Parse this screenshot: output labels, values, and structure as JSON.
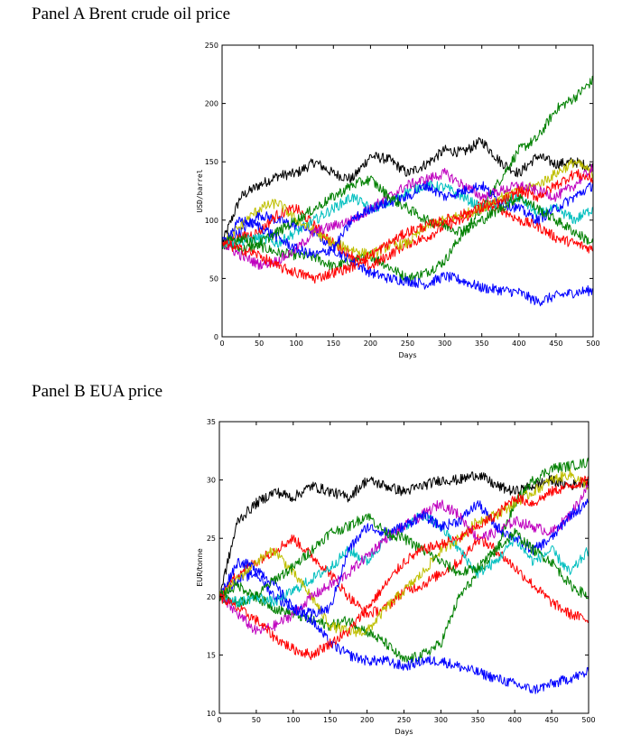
{
  "panels": [
    {
      "title": "Panel A Brent crude oil price"
    },
    {
      "title": "Panel B EUA price"
    }
  ],
  "chart_data": [
    {
      "type": "line",
      "title": "Panel A Brent crude oil price",
      "xlabel": "Days",
      "ylabel": "USD/barrel",
      "xlim": [
        0,
        500
      ],
      "ylim": [
        0,
        250
      ],
      "xticks": [
        0,
        50,
        100,
        150,
        200,
        250,
        300,
        350,
        400,
        450,
        500
      ],
      "yticks": [
        0,
        50,
        100,
        150,
        200,
        250
      ],
      "grid": false,
      "x": [
        0,
        25,
        50,
        75,
        100,
        125,
        150,
        175,
        200,
        225,
        250,
        275,
        300,
        325,
        350,
        375,
        400,
        425,
        450,
        475,
        500
      ],
      "series": [
        {
          "color": "#000000",
          "values": [
            80,
            120,
            130,
            138,
            140,
            150,
            140,
            135,
            155,
            152,
            140,
            148,
            160,
            158,
            168,
            150,
            140,
            155,
            148,
            150,
            145
          ]
        },
        {
          "color": "#008000",
          "values": [
            80,
            75,
            78,
            72,
            70,
            68,
            60,
            65,
            70,
            60,
            50,
            55,
            65,
            90,
            110,
            135,
            160,
            170,
            195,
            205,
            220
          ]
        },
        {
          "color": "#0000ff",
          "values": [
            80,
            90,
            105,
            100,
            95,
            90,
            75,
            65,
            55,
            50,
            48,
            45,
            52,
            48,
            42,
            40,
            38,
            30,
            35,
            38,
            40
          ]
        },
        {
          "color": "#ff0000",
          "values": [
            80,
            85,
            90,
            105,
            110,
            95,
            80,
            70,
            60,
            70,
            80,
            85,
            95,
            100,
            115,
            110,
            100,
            95,
            85,
            80,
            75
          ]
        },
        {
          "color": "#00bfbf",
          "values": [
            80,
            82,
            85,
            80,
            90,
            100,
            110,
            120,
            110,
            115,
            125,
            130,
            128,
            120,
            110,
            115,
            120,
            105,
            110,
            100,
            110
          ]
        },
        {
          "color": "#bfbf00",
          "values": [
            80,
            95,
            110,
            115,
            100,
            90,
            80,
            75,
            70,
            78,
            80,
            95,
            100,
            105,
            110,
            120,
            125,
            130,
            140,
            150,
            140
          ]
        },
        {
          "color": "#bf00bf",
          "values": [
            80,
            70,
            62,
            65,
            75,
            90,
            95,
            100,
            110,
            120,
            130,
            135,
            140,
            130,
            120,
            125,
            130,
            125,
            120,
            130,
            145
          ]
        },
        {
          "color": "#0000ff",
          "values": [
            80,
            100,
            95,
            85,
            75,
            70,
            75,
            100,
            110,
            115,
            120,
            130,
            120,
            125,
            130,
            115,
            110,
            100,
            110,
            120,
            130
          ]
        },
        {
          "color": "#008000",
          "values": [
            80,
            85,
            80,
            90,
            100,
            110,
            120,
            130,
            135,
            120,
            110,
            100,
            95,
            90,
            100,
            110,
            120,
            110,
            100,
            90,
            80
          ]
        },
        {
          "color": "#ff0000",
          "values": [
            80,
            75,
            70,
            60,
            55,
            50,
            55,
            60,
            70,
            80,
            90,
            95,
            100,
            105,
            110,
            115,
            125,
            120,
            130,
            140,
            135
          ]
        }
      ]
    },
    {
      "type": "line",
      "title": "Panel B EUA price",
      "xlabel": "Days",
      "ylabel": "EUR/tonne",
      "xlim": [
        0,
        500
      ],
      "ylim": [
        10,
        35
      ],
      "xticks": [
        0,
        50,
        100,
        150,
        200,
        250,
        300,
        350,
        400,
        450,
        500
      ],
      "yticks": [
        10,
        15,
        20,
        25,
        30,
        35
      ],
      "grid": false,
      "x": [
        0,
        25,
        50,
        75,
        100,
        125,
        150,
        175,
        200,
        225,
        250,
        275,
        300,
        325,
        350,
        375,
        400,
        425,
        450,
        475,
        500
      ],
      "series": [
        {
          "color": "#000000",
          "values": [
            20,
            26.5,
            28,
            29,
            28.5,
            29.5,
            29,
            28.5,
            30,
            29.5,
            29,
            29.5,
            30,
            30,
            30.5,
            29.5,
            29,
            29.5,
            30,
            29.5,
            30
          ]
        },
        {
          "color": "#008000",
          "values": [
            20,
            19.5,
            20,
            19,
            18.5,
            18,
            17.5,
            18,
            17,
            16,
            14.5,
            15,
            16,
            20,
            22,
            24,
            28,
            30,
            31,
            31.2,
            31.5
          ]
        },
        {
          "color": "#0000ff",
          "values": [
            20,
            21.5,
            22,
            20,
            19,
            18,
            16,
            15,
            14.5,
            14.5,
            14,
            14.5,
            14.5,
            14,
            13.5,
            13,
            12.5,
            12,
            12.5,
            13,
            13.5
          ]
        },
        {
          "color": "#ff0000",
          "values": [
            20,
            22,
            23,
            24,
            25,
            23.5,
            22,
            20,
            18.5,
            19,
            20.5,
            21,
            22,
            23,
            25,
            24,
            22.5,
            21,
            19.5,
            18.5,
            18
          ]
        },
        {
          "color": "#00bfbf",
          "values": [
            20,
            19.5,
            20,
            19.5,
            20.5,
            21.5,
            22.5,
            24,
            23,
            25,
            26,
            27,
            26,
            24,
            22,
            23,
            25,
            23,
            24,
            22,
            24
          ]
        },
        {
          "color": "#bfbf00",
          "values": [
            20,
            21.5,
            23,
            24,
            22,
            20,
            17.5,
            17,
            17,
            19,
            20.5,
            22,
            24,
            25,
            26.5,
            27,
            28,
            29,
            30,
            30.5,
            29.5
          ]
        },
        {
          "color": "#bf00bf",
          "values": [
            20,
            18.5,
            17,
            17.5,
            18.5,
            20,
            21,
            22,
            23.5,
            25,
            26,
            27,
            28,
            27,
            25,
            25.5,
            26.5,
            26,
            25.5,
            27,
            29.5
          ]
        },
        {
          "color": "#0000ff",
          "values": [
            20,
            23,
            22.5,
            21,
            19,
            18.5,
            19,
            24,
            26,
            25.5,
            26,
            27,
            26,
            26.5,
            28,
            26,
            25,
            24,
            25,
            27,
            28
          ]
        },
        {
          "color": "#008000",
          "values": [
            20,
            21,
            20,
            21.5,
            22.5,
            24,
            25.5,
            26,
            27,
            25.5,
            25,
            24,
            23,
            22,
            22.5,
            24,
            25.5,
            24,
            23,
            21,
            20
          ]
        },
        {
          "color": "#ff0000",
          "values": [
            20,
            19,
            18,
            16.5,
            15.5,
            15,
            16,
            17,
            19,
            21,
            23,
            24,
            24.5,
            25,
            26,
            27,
            28.5,
            28,
            29,
            29.5,
            30
          ]
        }
      ]
    }
  ]
}
